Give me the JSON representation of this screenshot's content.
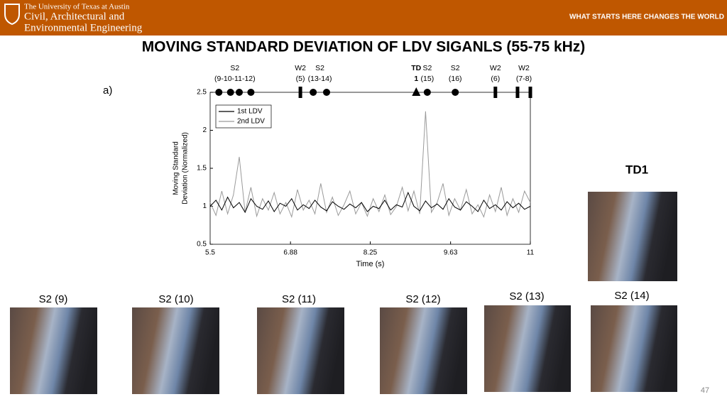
{
  "header": {
    "university": "The University of Texas at Austin",
    "department": [
      "Civil, Architectural and",
      "Environmental Engineering"
    ],
    "tagline": "WHAT STARTS HERE CHANGES THE WORLD"
  },
  "slide_title": "MOVING STANDARD DEVIATION OF LDV SIGANLS (55-75 kHz)",
  "panel_label": "a)",
  "td1_label": "TD1",
  "photos": [
    {
      "label": "S2 (9)"
    },
    {
      "label": "S2 (10)"
    },
    {
      "label": "S2 (11)"
    },
    {
      "label": "S2 (12)"
    },
    {
      "label": "S2 (13)"
    },
    {
      "label": "S2 (14)"
    }
  ],
  "page_number": "47",
  "chart_data": {
    "type": "line",
    "xlabel": "Time (s)",
    "ylabel": [
      "Moving Standard",
      "Deviation (Normalized)"
    ],
    "xlim": [
      5.5,
      11
    ],
    "xticks": [
      5.5,
      6.88,
      8.25,
      9.63,
      11
    ],
    "ylim": [
      0.5,
      2.5
    ],
    "yticks": [
      0.5,
      1,
      1.5,
      2,
      2.5
    ],
    "legend": "top-left",
    "x": [
      5.5,
      5.6,
      5.7,
      5.8,
      5.9,
      6.0,
      6.1,
      6.2,
      6.3,
      6.4,
      6.5,
      6.6,
      6.7,
      6.8,
      6.9,
      7.0,
      7.1,
      7.2,
      7.3,
      7.4,
      7.5,
      7.6,
      7.7,
      7.8,
      7.9,
      8.0,
      8.1,
      8.2,
      8.3,
      8.4,
      8.5,
      8.6,
      8.7,
      8.8,
      8.9,
      9.0,
      9.1,
      9.2,
      9.3,
      9.4,
      9.5,
      9.6,
      9.7,
      9.8,
      9.9,
      10.0,
      10.1,
      10.2,
      10.3,
      10.4,
      10.5,
      10.6,
      10.7,
      10.8,
      10.9,
      11.0
    ],
    "series": [
      {
        "name": "1st LDV",
        "color": "#000000",
        "values": [
          1.0,
          1.08,
          0.95,
          1.12,
          0.98,
          1.05,
          0.92,
          1.1,
          1.0,
          0.96,
          1.07,
          0.93,
          1.04,
          1.0,
          1.1,
          0.95,
          1.02,
          0.97,
          1.08,
          0.99,
          0.94,
          1.06,
          1.0,
          0.96,
          1.03,
          0.98,
          1.05,
          0.93,
          1.0,
          0.97,
          1.08,
          0.95,
          1.02,
          0.99,
          1.18,
          1.0,
          0.94,
          1.07,
          0.98,
          1.03,
          0.96,
          1.1,
          0.99,
          0.95,
          1.06,
          1.0,
          0.93,
          1.08,
          0.97,
          1.02,
          0.95,
          1.06,
          0.98,
          1.04,
          0.96,
          1.0
        ]
      },
      {
        "name": "2nd LDV",
        "color": "#9a9a9a",
        "values": [
          1.05,
          0.88,
          1.2,
          0.9,
          1.15,
          1.65,
          0.92,
          1.25,
          0.87,
          1.1,
          0.95,
          1.18,
          0.9,
          1.05,
          0.86,
          1.22,
          0.95,
          1.08,
          0.9,
          1.3,
          0.92,
          1.12,
          0.88,
          1.02,
          1.2,
          0.9,
          1.05,
          0.87,
          1.1,
          0.93,
          1.15,
          0.89,
          1.0,
          1.25,
          0.94,
          1.2,
          0.9,
          2.25,
          0.92,
          1.05,
          1.3,
          0.88,
          1.1,
          0.95,
          1.22,
          0.9,
          1.02,
          0.86,
          1.15,
          0.93,
          1.25,
          0.88,
          1.1,
          0.92,
          1.2,
          1.05
        ]
      }
    ],
    "events": [
      {
        "labels": [
          "S2",
          "(9-10-11-12)"
        ],
        "marker": "circle",
        "x": [
          5.65,
          5.85,
          6.0,
          6.2
        ]
      },
      {
        "labels": [
          "W2",
          "(5)"
        ],
        "marker": "bar",
        "x": [
          7.05
        ]
      },
      {
        "labels": [
          "S2",
          "(13-14)"
        ],
        "marker": "circle",
        "x": [
          7.27,
          7.5
        ]
      },
      {
        "labels": [
          "TD",
          "1"
        ],
        "marker": "triangle",
        "x": [
          9.04
        ]
      },
      {
        "labels": [
          "S2",
          "(15)"
        ],
        "marker": "circle",
        "x": [
          9.23
        ]
      },
      {
        "labels": [
          "S2",
          "(16)"
        ],
        "marker": "circle",
        "x": [
          9.71
        ]
      },
      {
        "labels": [
          "W2",
          "(6)"
        ],
        "marker": "bar",
        "x": [
          10.4
        ]
      },
      {
        "labels": [
          "W2",
          "(7-8)"
        ],
        "marker": "bar",
        "x": [
          10.78,
          11.0
        ]
      }
    ]
  }
}
